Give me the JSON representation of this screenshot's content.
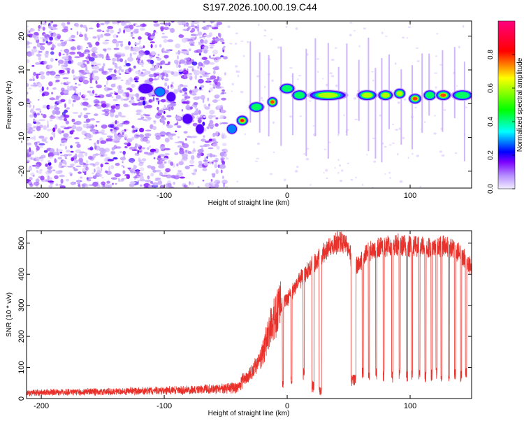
{
  "title": "S197.2026.100.00.19.C44",
  "chart_data": [
    {
      "type": "heatmap",
      "name": "spectrogram",
      "xlabel": "Height of straight line (km)",
      "ylabel": "Frequency (Hz)",
      "xlim": [
        -212,
        150
      ],
      "ylim": [
        -25,
        24.5
      ],
      "xticks": [
        -200,
        -100,
        0,
        100
      ],
      "yticks": [
        -20,
        -10,
        0,
        10,
        20
      ],
      "colorbar": {
        "label": "Normalized spectral amplitude",
        "range": [
          0,
          1
        ],
        "ticks": [
          0.0,
          0.2,
          0.4,
          0.6,
          0.8
        ],
        "colors": [
          "#f2ecff",
          "#7c00ff",
          "#0000ff",
          "#00ffff",
          "#00ff00",
          "#ffff00",
          "#ff0000",
          "#ff0080"
        ]
      },
      "noise_region_x": [
        -212,
        -50
      ],
      "trace_segments": [
        {
          "x": [
            -120,
            -110
          ],
          "freq": 4.5,
          "peak": 0.25
        },
        {
          "x": [
            -107,
            -100
          ],
          "freq": 3.5,
          "peak": 0.3
        },
        {
          "x": [
            -97,
            -92
          ],
          "freq": 2.0,
          "peak": 0.25
        },
        {
          "x": [
            -84,
            -78
          ],
          "freq": -4.5,
          "peak": 0.2
        },
        {
          "x": [
            -73,
            -69
          ],
          "freq": -7.5,
          "peak": 0.2
        },
        {
          "x": [
            -48,
            -42
          ],
          "freq": -7.5,
          "peak": 0.3
        },
        {
          "x": [
            -40,
            -33
          ],
          "freq": -5.0,
          "peak": 0.9
        },
        {
          "x": [
            -30,
            -20
          ],
          "freq": -1.0,
          "peak": 0.4
        },
        {
          "x": [
            -15,
            -9
          ],
          "freq": 0.5,
          "peak": 0.8
        },
        {
          "x": [
            -5,
            5
          ],
          "freq": 4.5,
          "peak": 0.4
        },
        {
          "x": [
            5,
            15
          ],
          "freq": 2.5,
          "peak": 0.5
        },
        {
          "x": [
            18,
            48
          ],
          "freq": 2.5,
          "peak": 0.75
        },
        {
          "x": [
            58,
            72
          ],
          "freq": 2.5,
          "peak": 0.6
        },
        {
          "x": [
            75,
            85
          ],
          "freq": 2.5,
          "peak": 0.7
        },
        {
          "x": [
            88,
            95
          ],
          "freq": 3.0,
          "peak": 0.6
        },
        {
          "x": [
            100,
            108
          ],
          "freq": 1.5,
          "peak": 0.85
        },
        {
          "x": [
            112,
            120
          ],
          "freq": 2.5,
          "peak": 0.4
        },
        {
          "x": [
            122,
            132
          ],
          "freq": 2.5,
          "peak": 0.8
        },
        {
          "x": [
            135,
            150
          ],
          "freq": 2.5,
          "peak": 0.4
        }
      ]
    },
    {
      "type": "line",
      "name": "snr",
      "xlabel": "Height of straight line (km)",
      "ylabel": "SNR (10 * v/v)",
      "xlim": [
        -212,
        150
      ],
      "ylim": [
        0,
        540
      ],
      "xticks": [
        -200,
        -100,
        0,
        100
      ],
      "yticks": [
        0,
        100,
        200,
        300,
        400,
        500
      ],
      "color": "#e8312a",
      "profile": {
        "x": [
          -212,
          -150,
          -100,
          -60,
          -40,
          -35,
          -30,
          -25,
          -20,
          -15,
          -10,
          -5,
          0,
          5,
          10,
          15,
          20,
          25,
          30,
          35,
          40,
          45,
          50,
          55,
          60,
          65,
          70,
          80,
          90,
          100,
          110,
          120,
          130,
          140,
          150
        ],
        "y": [
          18,
          22,
          25,
          30,
          35,
          60,
          80,
          110,
          140,
          220,
          260,
          300,
          320,
          350,
          380,
          400,
          430,
          450,
          470,
          490,
          500,
          505,
          480,
          420,
          440,
          470,
          480,
          490,
          495,
          490,
          488,
          485,
          490,
          470,
          420
        ]
      },
      "dropouts": [
        {
          "x": [
            -4,
            -3
          ],
          "y": 45
        },
        {
          "x": [
            3,
            4
          ],
          "y": 60
        },
        {
          "x": [
            13,
            14
          ],
          "y": 80
        },
        {
          "x": [
            20,
            22
          ],
          "y": 40
        },
        {
          "x": [
            26,
            28
          ],
          "y": 30
        },
        {
          "x": [
            52,
            56
          ],
          "y": 60
        },
        {
          "x": [
            61,
            62
          ],
          "y": 80
        },
        {
          "x": [
            66,
            67
          ],
          "y": 70
        },
        {
          "x": [
            72,
            73
          ],
          "y": 80
        },
        {
          "x": [
            78,
            79
          ],
          "y": 75
        },
        {
          "x": [
            85,
            86
          ],
          "y": 70
        },
        {
          "x": [
            91,
            92
          ],
          "y": 80
        },
        {
          "x": [
            97,
            98
          ],
          "y": 70
        },
        {
          "x": [
            101,
            102
          ],
          "y": 75
        },
        {
          "x": [
            107,
            108
          ],
          "y": 80
        },
        {
          "x": [
            112,
            113
          ],
          "y": 70
        },
        {
          "x": [
            117,
            118
          ],
          "y": 75
        },
        {
          "x": [
            121,
            122
          ],
          "y": 80
        },
        {
          "x": [
            125,
            126
          ],
          "y": 70
        },
        {
          "x": [
            131,
            132
          ],
          "y": 75
        },
        {
          "x": [
            136,
            137
          ],
          "y": 80
        },
        {
          "x": [
            141,
            142
          ],
          "y": 70
        },
        {
          "x": [
            145,
            146
          ],
          "y": 80
        }
      ]
    }
  ]
}
